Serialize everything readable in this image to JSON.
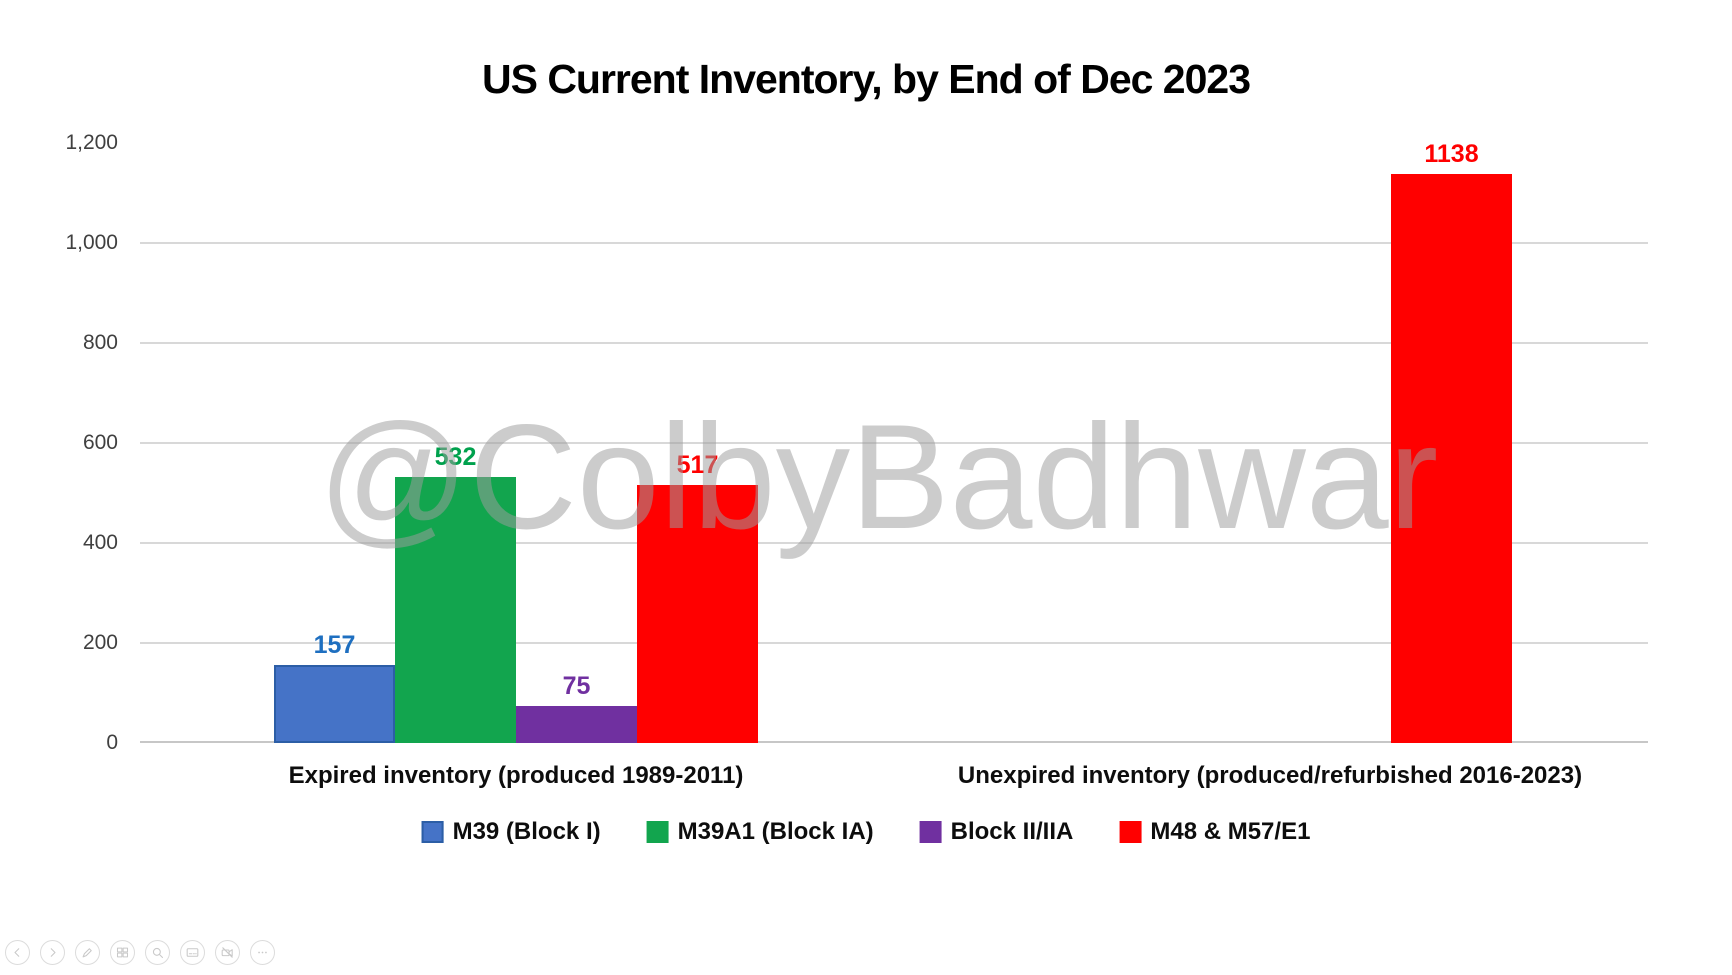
{
  "slide": {
    "watermark": "@ColbyBadhwar"
  },
  "chart_data": {
    "type": "bar",
    "title": "US Current Inventory, by End of Dec 2023",
    "categories": [
      "Expired inventory (produced 1989-2011)",
      "Unexpired inventory (produced/refurbished 2016-2023)"
    ],
    "series": [
      {
        "name": "M39 (Block I)",
        "color": "#4573C7",
        "border_color": "#2C5EA6",
        "label_color": "#1E6FC0",
        "values": [
          157,
          null
        ]
      },
      {
        "name": "M39A1 (Block IA)",
        "color": "#12A54E",
        "border_color": null,
        "label_color": "#00A14D",
        "values": [
          532,
          null
        ]
      },
      {
        "name": "Block II/IIA",
        "color": "#7030A0",
        "border_color": null,
        "label_color": "#7030A0",
        "values": [
          75,
          null
        ]
      },
      {
        "name": "M48 & M57/E1",
        "color": "#FF0000",
        "border_color": null,
        "label_color": "#FF0000",
        "values": [
          517,
          1138
        ]
      }
    ],
    "ylim": [
      0,
      1200
    ],
    "yticks": [
      {
        "label": "0",
        "value": 0
      },
      {
        "label": "200",
        "value": 200
      },
      {
        "label": "400",
        "value": 400
      },
      {
        "label": "600",
        "value": 600
      },
      {
        "label": "800",
        "value": 800
      },
      {
        "label": "1,000",
        "value": 1000
      },
      {
        "label": "1,200",
        "value": 1200
      }
    ],
    "gridline_values": [
      200,
      400,
      600,
      800,
      1000
    ],
    "grid": true,
    "legend_position": "bottom",
    "data_label_colors_match_series": true
  },
  "toolbar": {
    "buttons": [
      {
        "icon": "chevron-left-icon",
        "name": "previous-slide-button"
      },
      {
        "icon": "chevron-right-icon",
        "name": "next-slide-button"
      },
      {
        "icon": "pen-icon",
        "name": "pen-tools-button"
      },
      {
        "icon": "all-slides-icon",
        "name": "see-all-slides-button"
      },
      {
        "icon": "magnifier-icon",
        "name": "zoom-button"
      },
      {
        "icon": "captions-icon",
        "name": "captions-button"
      },
      {
        "icon": "camera-off-icon",
        "name": "camera-toggle-button"
      },
      {
        "icon": "ellipsis-icon",
        "name": "more-options-button"
      }
    ]
  }
}
